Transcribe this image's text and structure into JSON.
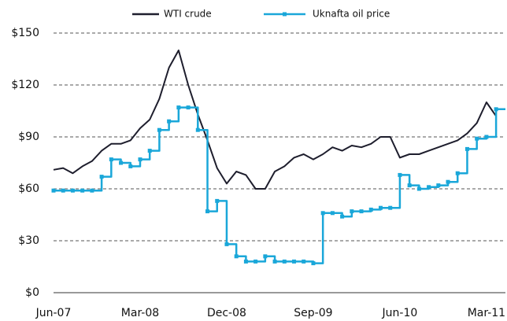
{
  "chart_data": {
    "type": "line",
    "categories": [
      "Jun-07",
      null,
      null,
      null,
      null,
      null,
      null,
      null,
      null,
      "Mar-08",
      null,
      null,
      null,
      null,
      null,
      null,
      null,
      null,
      "Dec-08",
      null,
      null,
      null,
      null,
      null,
      null,
      null,
      null,
      "Sep-09",
      null,
      null,
      null,
      null,
      null,
      null,
      null,
      null,
      "Jun-10",
      null,
      null,
      null,
      null,
      null,
      null,
      null,
      null,
      "Mar-11",
      null
    ],
    "series": [
      {
        "name": "WTI crude",
        "color": "#1e1e2d",
        "step": false,
        "markers": false,
        "values": [
          71,
          72,
          69,
          73,
          76,
          82,
          86,
          86,
          88,
          95,
          100,
          112,
          130,
          140,
          120,
          103,
          88,
          72,
          63,
          70,
          68,
          60,
          60,
          70,
          73,
          78,
          80,
          77,
          80,
          84,
          82,
          85,
          84,
          86,
          90,
          90,
          78,
          80,
          80,
          82,
          84,
          86,
          88,
          92,
          98,
          110,
          102
        ]
      },
      {
        "name": "Uknafta oil price",
        "color": "#1aa7d9",
        "step": true,
        "markers": true,
        "values": [
          59,
          59,
          59,
          59,
          59,
          67,
          77,
          75,
          73,
          77,
          82,
          94,
          99,
          107,
          107,
          94,
          47,
          53,
          28,
          21,
          18,
          18,
          21,
          18,
          18,
          18,
          18,
          17,
          46,
          46,
          44,
          47,
          47,
          48,
          49,
          49,
          68,
          62,
          60,
          61,
          62,
          64,
          69,
          83,
          89,
          90,
          106
        ]
      }
    ],
    "ylim": [
      0,
      150
    ],
    "yticks": [
      {
        "value": 0,
        "label": "$0"
      },
      {
        "value": 30,
        "label": "$30"
      },
      {
        "value": 60,
        "label": "$60"
      },
      {
        "value": 90,
        "label": "$90"
      },
      {
        "value": 120,
        "label": "$120"
      },
      {
        "value": 150,
        "label": "$150"
      }
    ],
    "grid": true,
    "legend": "top"
  }
}
